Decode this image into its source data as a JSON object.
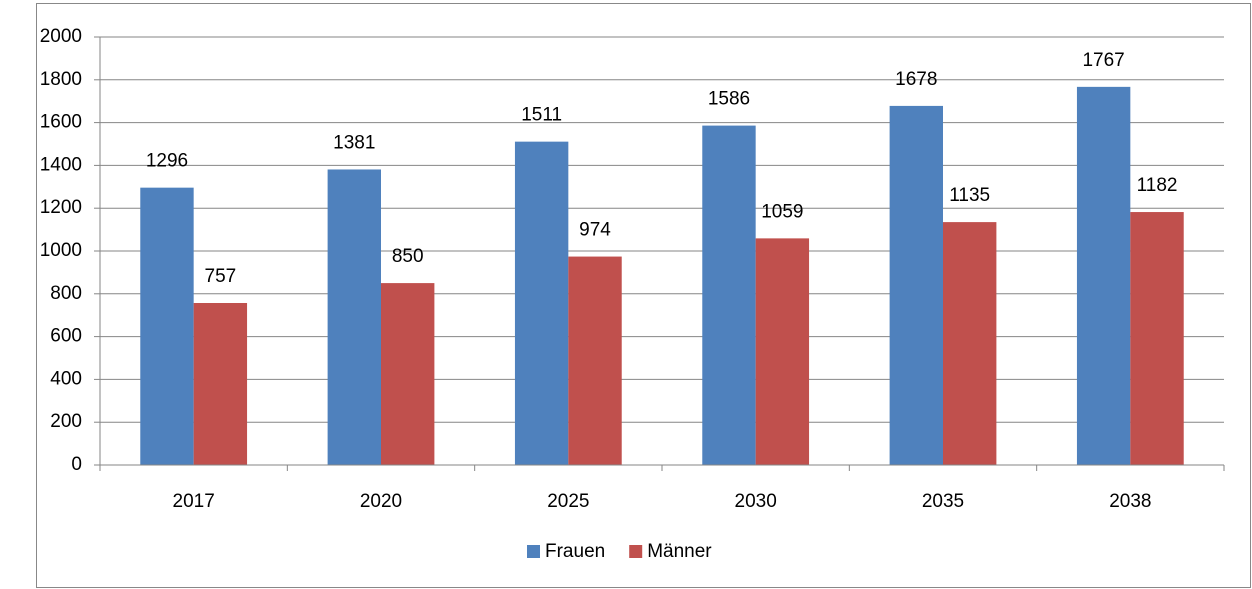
{
  "chart_data": {
    "type": "bar",
    "categories": [
      "2017",
      "2020",
      "2025",
      "2030",
      "2035",
      "2038"
    ],
    "series": [
      {
        "name": "Frauen",
        "color": "#4f81bd",
        "values": [
          1296,
          1381,
          1511,
          1586,
          1678,
          1767
        ]
      },
      {
        "name": "Männer",
        "color": "#c0504d",
        "values": [
          757,
          850,
          974,
          1059,
          1135,
          1182
        ]
      }
    ],
    "ylim": [
      0,
      2000
    ],
    "yticks": [
      0,
      200,
      400,
      600,
      800,
      1000,
      1200,
      1400,
      1600,
      1800,
      2000
    ],
    "grid": true,
    "legend": "bottom"
  }
}
